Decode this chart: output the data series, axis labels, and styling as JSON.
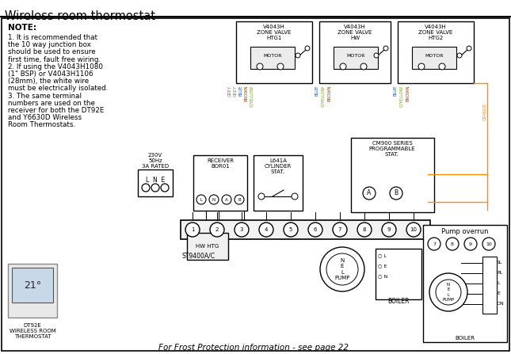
{
  "title": "Wireless room thermostat",
  "bg_color": "#ffffff",
  "border_color": "#000000",
  "note_text": [
    "NOTE:",
    "1. It is recommended that",
    "the 10 way junction box",
    "should be used to ensure",
    "first time, fault free wiring.",
    "2. If using the V4043H1080",
    "(1\" BSP) or V4043H1106",
    "(28mm), the white wire",
    "must be electrically isolated.",
    "3. The same terminal",
    "numbers are used on the",
    "receiver for both the DT92E",
    "and Y6630D Wireless",
    "Room Thermostats."
  ],
  "footer_text": "For Frost Protection information - see page 22",
  "pump_overrun_label": "Pump overrun",
  "boiler_label": "BOILER",
  "st9400_label": "ST9400A/C",
  "dt92e_label": "DT92E\nWIRELESS ROOM\nTHERMOSTAT",
  "power_label": "230V\n50Hz\n3A RATED",
  "lne_label": "L  N  E",
  "receiver_label": "RECEIVER\nBOR01",
  "l641a_label": "L641A\nCYLINDER\nSTAT.",
  "cm900_label": "CM900 SERIES\nPROGRAMMABLE\nSTAT.",
  "hwhtg_label": "HW HTG",
  "pump_label": "N\nE\nL\nPUMP"
}
